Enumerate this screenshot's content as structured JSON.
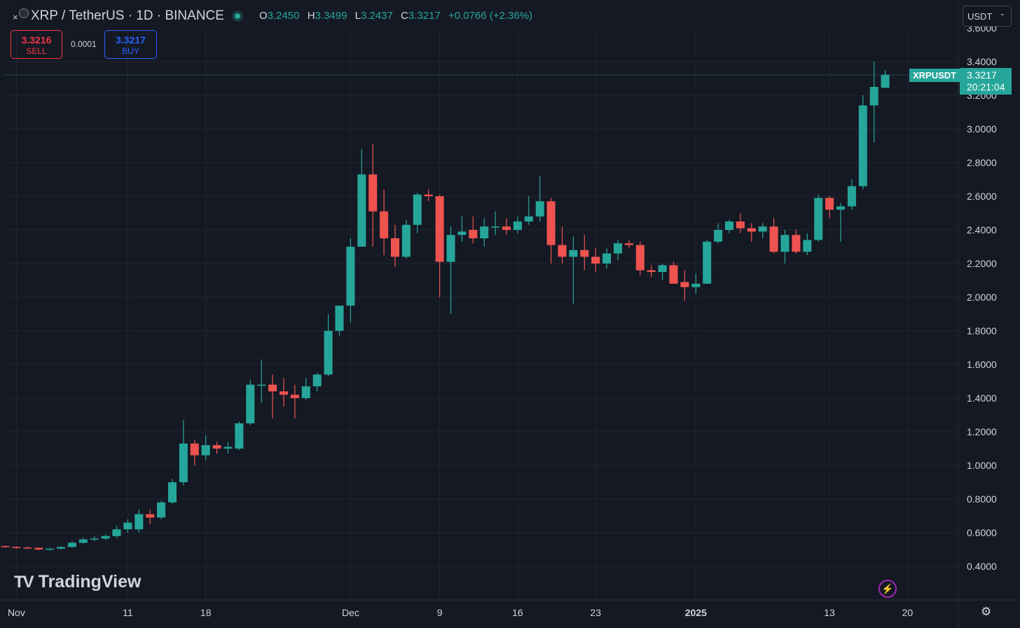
{
  "header": {
    "close_glyph": "×",
    "symbol_title": "XRP / TetherUS · 1D · BINANCE",
    "ohlc": {
      "o_key": "O",
      "o": "3.2450",
      "h_key": "H",
      "h": "3.3499",
      "l_key": "L",
      "l": "3.2437",
      "c_key": "C",
      "c": "3.3217",
      "change": "+0.0766 (+2.36%)"
    }
  },
  "trade": {
    "sell_price": "3.3216",
    "sell_label": "SELL",
    "spread": "0.0001",
    "buy_price": "3.3217",
    "buy_label": "BUY"
  },
  "currency_selector": {
    "value": "USDT"
  },
  "last_price": {
    "symbol": "XRPUSDT",
    "price": "3.3217",
    "countdown": "20:21:04"
  },
  "branding": {
    "logo_text": "TradingView",
    "logo_mark": "TV"
  },
  "icons": {
    "flash": "flash-icon",
    "settings": "settings-icon",
    "logo": "tradingview-logo-icon"
  },
  "colors": {
    "up": "#26a69a",
    "down": "#ef5350",
    "background": "#151924",
    "grid": "#222631",
    "text": "#d1d4dc"
  },
  "chart_data": {
    "type": "candlestick",
    "symbol": "XRPUSDT",
    "interval": "1D",
    "exchange": "BINANCE",
    "y_ticks": [
      "0.4000",
      "0.6000",
      "0.8000",
      "1.0000",
      "1.2000",
      "1.4000",
      "1.6000",
      "1.8000",
      "2.0000",
      "2.2000",
      "2.4000",
      "2.6000",
      "2.8000",
      "3.0000",
      "3.2000",
      "3.4000"
    ],
    "x_ticks": [
      {
        "label": "Nov",
        "date": "2024-11-01"
      },
      {
        "label": "11",
        "date": "2024-11-11"
      },
      {
        "label": "18",
        "date": "2024-11-18"
      },
      {
        "label": "Dec",
        "date": "2024-12-01"
      },
      {
        "label": "9",
        "date": "2024-12-09"
      },
      {
        "label": "16",
        "date": "2024-12-16"
      },
      {
        "label": "23",
        "date": "2024-12-23"
      },
      {
        "label": "2025",
        "date": "2025-01-01"
      },
      {
        "label": "13",
        "date": "2025-01-13"
      },
      {
        "label": "20",
        "date": "2025-01-20"
      }
    ],
    "ylim": [
      0.33,
      3.49
    ],
    "candles": [
      {
        "date": "2024-10-31",
        "o": 0.52,
        "h": 0.525,
        "l": 0.51,
        "c": 0.515
      },
      {
        "date": "2024-11-01",
        "o": 0.515,
        "h": 0.52,
        "l": 0.505,
        "c": 0.512
      },
      {
        "date": "2024-11-02",
        "o": 0.512,
        "h": 0.518,
        "l": 0.508,
        "c": 0.51
      },
      {
        "date": "2024-11-03",
        "o": 0.51,
        "h": 0.512,
        "l": 0.495,
        "c": 0.5
      },
      {
        "date": "2024-11-04",
        "o": 0.5,
        "h": 0.51,
        "l": 0.492,
        "c": 0.505
      },
      {
        "date": "2024-11-05",
        "o": 0.505,
        "h": 0.52,
        "l": 0.5,
        "c": 0.515
      },
      {
        "date": "2024-11-06",
        "o": 0.515,
        "h": 0.55,
        "l": 0.51,
        "c": 0.54
      },
      {
        "date": "2024-11-07",
        "o": 0.54,
        "h": 0.57,
        "l": 0.535,
        "c": 0.56
      },
      {
        "date": "2024-11-08",
        "o": 0.56,
        "h": 0.58,
        "l": 0.55,
        "c": 0.565
      },
      {
        "date": "2024-11-09",
        "o": 0.565,
        "h": 0.59,
        "l": 0.555,
        "c": 0.58
      },
      {
        "date": "2024-11-10",
        "o": 0.58,
        "h": 0.64,
        "l": 0.57,
        "c": 0.62
      },
      {
        "date": "2024-11-11",
        "o": 0.62,
        "h": 0.68,
        "l": 0.6,
        "c": 0.66
      },
      {
        "date": "2024-11-12",
        "o": 0.62,
        "h": 0.74,
        "l": 0.6,
        "c": 0.71
      },
      {
        "date": "2024-11-13",
        "o": 0.71,
        "h": 0.74,
        "l": 0.65,
        "c": 0.69
      },
      {
        "date": "2024-11-14",
        "o": 0.69,
        "h": 0.79,
        "l": 0.68,
        "c": 0.78
      },
      {
        "date": "2024-11-15",
        "o": 0.78,
        "h": 0.92,
        "l": 0.77,
        "c": 0.9
      },
      {
        "date": "2024-11-16",
        "o": 0.9,
        "h": 1.27,
        "l": 0.88,
        "c": 1.13
      },
      {
        "date": "2024-11-17",
        "o": 1.13,
        "h": 1.15,
        "l": 1.0,
        "c": 1.06
      },
      {
        "date": "2024-11-18",
        "o": 1.06,
        "h": 1.18,
        "l": 1.03,
        "c": 1.12
      },
      {
        "date": "2024-11-19",
        "o": 1.12,
        "h": 1.14,
        "l": 1.07,
        "c": 1.1
      },
      {
        "date": "2024-11-20",
        "o": 1.1,
        "h": 1.14,
        "l": 1.07,
        "c": 1.11
      },
      {
        "date": "2024-11-21",
        "o": 1.1,
        "h": 1.26,
        "l": 1.09,
        "c": 1.25
      },
      {
        "date": "2024-11-22",
        "o": 1.25,
        "h": 1.51,
        "l": 1.24,
        "c": 1.48
      },
      {
        "date": "2024-11-23",
        "o": 1.48,
        "h": 1.63,
        "l": 1.37,
        "c": 1.48
      },
      {
        "date": "2024-11-24",
        "o": 1.48,
        "h": 1.54,
        "l": 1.28,
        "c": 1.44
      },
      {
        "date": "2024-11-25",
        "o": 1.44,
        "h": 1.52,
        "l": 1.35,
        "c": 1.42
      },
      {
        "date": "2024-11-26",
        "o": 1.42,
        "h": 1.48,
        "l": 1.28,
        "c": 1.4
      },
      {
        "date": "2024-11-27",
        "o": 1.4,
        "h": 1.52,
        "l": 1.39,
        "c": 1.47
      },
      {
        "date": "2024-11-28",
        "o": 1.47,
        "h": 1.55,
        "l": 1.44,
        "c": 1.54
      },
      {
        "date": "2024-11-29",
        "o": 1.54,
        "h": 1.9,
        "l": 1.53,
        "c": 1.8
      },
      {
        "date": "2024-11-30",
        "o": 1.8,
        "h": 1.95,
        "l": 1.77,
        "c": 1.95
      },
      {
        "date": "2024-12-01",
        "o": 1.95,
        "h": 2.35,
        "l": 1.85,
        "c": 2.3
      },
      {
        "date": "2024-12-02",
        "o": 2.3,
        "h": 2.88,
        "l": 2.3,
        "c": 2.73
      },
      {
        "date": "2024-12-03",
        "o": 2.73,
        "h": 2.91,
        "l": 2.3,
        "c": 2.51
      },
      {
        "date": "2024-12-04",
        "o": 2.51,
        "h": 2.64,
        "l": 2.25,
        "c": 2.35
      },
      {
        "date": "2024-12-05",
        "o": 2.35,
        "h": 2.43,
        "l": 2.18,
        "c": 2.24
      },
      {
        "date": "2024-12-06",
        "o": 2.24,
        "h": 2.46,
        "l": 2.23,
        "c": 2.43
      },
      {
        "date": "2024-12-07",
        "o": 2.43,
        "h": 2.62,
        "l": 2.38,
        "c": 2.61
      },
      {
        "date": "2024-12-08",
        "o": 2.61,
        "h": 2.64,
        "l": 2.57,
        "c": 2.6
      },
      {
        "date": "2024-12-09",
        "o": 2.6,
        "h": 2.61,
        "l": 2.0,
        "c": 2.21
      },
      {
        "date": "2024-12-10",
        "o": 2.21,
        "h": 2.42,
        "l": 1.9,
        "c": 2.37
      },
      {
        "date": "2024-12-11",
        "o": 2.37,
        "h": 2.48,
        "l": 2.33,
        "c": 2.39
      },
      {
        "date": "2024-12-12",
        "o": 2.4,
        "h": 2.48,
        "l": 2.32,
        "c": 2.35
      },
      {
        "date": "2024-12-13",
        "o": 2.35,
        "h": 2.47,
        "l": 2.3,
        "c": 2.42
      },
      {
        "date": "2024-12-14",
        "o": 2.42,
        "h": 2.51,
        "l": 2.37,
        "c": 2.42
      },
      {
        "date": "2024-12-15",
        "o": 2.42,
        "h": 2.47,
        "l": 2.37,
        "c": 2.4
      },
      {
        "date": "2024-12-16",
        "o": 2.4,
        "h": 2.48,
        "l": 2.38,
        "c": 2.45
      },
      {
        "date": "2024-12-17",
        "o": 2.45,
        "h": 2.6,
        "l": 2.43,
        "c": 2.48
      },
      {
        "date": "2024-12-18",
        "o": 2.48,
        "h": 2.72,
        "l": 2.45,
        "c": 2.57
      },
      {
        "date": "2024-12-19",
        "o": 2.57,
        "h": 2.59,
        "l": 2.2,
        "c": 2.31
      },
      {
        "date": "2024-12-20",
        "o": 2.31,
        "h": 2.42,
        "l": 2.2,
        "c": 2.24
      },
      {
        "date": "2024-12-21",
        "o": 2.24,
        "h": 2.36,
        "l": 1.96,
        "c": 2.28
      },
      {
        "date": "2024-12-22",
        "o": 2.28,
        "h": 2.37,
        "l": 2.16,
        "c": 2.24
      },
      {
        "date": "2024-12-23",
        "o": 2.24,
        "h": 2.29,
        "l": 2.15,
        "c": 2.2
      },
      {
        "date": "2024-12-24",
        "o": 2.2,
        "h": 2.29,
        "l": 2.17,
        "c": 2.26
      },
      {
        "date": "2024-12-25",
        "o": 2.26,
        "h": 2.34,
        "l": 2.22,
        "c": 2.32
      },
      {
        "date": "2024-12-26",
        "o": 2.32,
        "h": 2.34,
        "l": 2.29,
        "c": 2.31
      },
      {
        "date": "2024-12-27",
        "o": 2.31,
        "h": 2.33,
        "l": 2.13,
        "c": 2.16
      },
      {
        "date": "2024-12-28",
        "o": 2.16,
        "h": 2.19,
        "l": 2.12,
        "c": 2.15
      },
      {
        "date": "2024-12-29",
        "o": 2.15,
        "h": 2.2,
        "l": 2.1,
        "c": 2.19
      },
      {
        "date": "2024-12-30",
        "o": 2.19,
        "h": 2.21,
        "l": 2.08,
        "c": 2.08
      },
      {
        "date": "2024-12-31",
        "o": 2.09,
        "h": 2.16,
        "l": 1.98,
        "c": 2.06
      },
      {
        "date": "2025-01-01",
        "o": 2.06,
        "h": 2.14,
        "l": 2.02,
        "c": 2.08
      },
      {
        "date": "2025-01-02",
        "o": 2.08,
        "h": 2.34,
        "l": 2.08,
        "c": 2.33
      },
      {
        "date": "2025-01-03",
        "o": 2.33,
        "h": 2.44,
        "l": 2.32,
        "c": 2.4
      },
      {
        "date": "2025-01-04",
        "o": 2.4,
        "h": 2.46,
        "l": 2.38,
        "c": 2.45
      },
      {
        "date": "2025-01-05",
        "o": 2.45,
        "h": 2.5,
        "l": 2.38,
        "c": 2.41
      },
      {
        "date": "2025-01-06",
        "o": 2.41,
        "h": 2.44,
        "l": 2.33,
        "c": 2.39
      },
      {
        "date": "2025-01-07",
        "o": 2.39,
        "h": 2.44,
        "l": 2.35,
        "c": 2.42
      },
      {
        "date": "2025-01-08",
        "o": 2.42,
        "h": 2.47,
        "l": 2.26,
        "c": 2.27
      },
      {
        "date": "2025-01-09",
        "o": 2.27,
        "h": 2.4,
        "l": 2.2,
        "c": 2.37
      },
      {
        "date": "2025-01-10",
        "o": 2.37,
        "h": 2.4,
        "l": 2.26,
        "c": 2.27
      },
      {
        "date": "2025-01-11",
        "o": 2.27,
        "h": 2.38,
        "l": 2.25,
        "c": 2.34
      },
      {
        "date": "2025-01-12",
        "o": 2.34,
        "h": 2.61,
        "l": 2.33,
        "c": 2.59
      },
      {
        "date": "2025-01-13",
        "o": 2.59,
        "h": 2.6,
        "l": 2.47,
        "c": 2.52
      },
      {
        "date": "2025-01-14",
        "o": 2.52,
        "h": 2.56,
        "l": 2.33,
        "c": 2.54
      },
      {
        "date": "2025-01-15",
        "o": 2.54,
        "h": 2.7,
        "l": 2.52,
        "c": 2.66
      },
      {
        "date": "2025-01-16",
        "o": 2.66,
        "h": 3.2,
        "l": 2.64,
        "c": 3.14
      },
      {
        "date": "2025-01-17",
        "o": 3.14,
        "h": 3.4,
        "l": 2.92,
        "c": 3.25
      },
      {
        "date": "2025-01-18",
        "o": 3.245,
        "h": 3.35,
        "l": 3.244,
        "c": 3.322
      }
    ]
  }
}
